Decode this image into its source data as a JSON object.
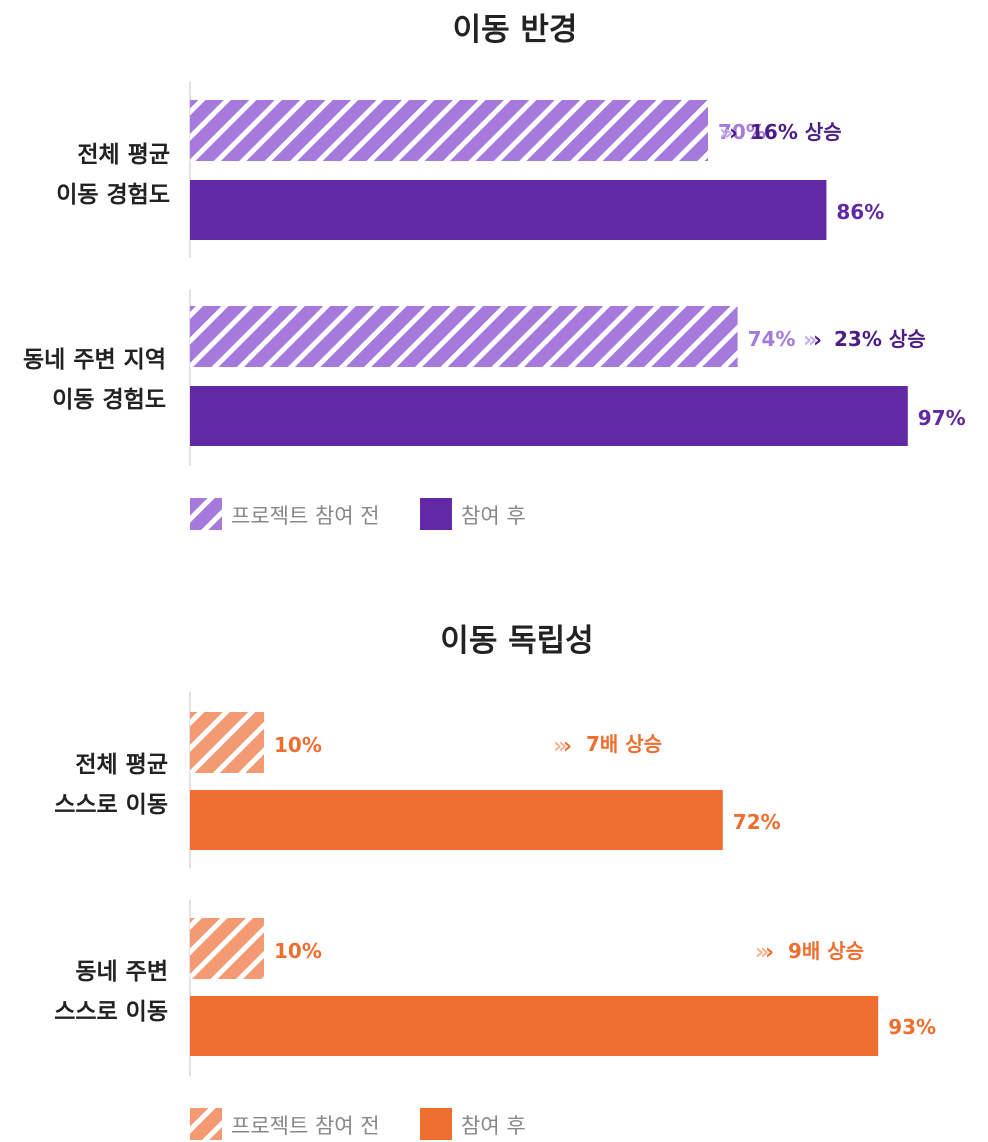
{
  "chart_data": [
    {
      "type": "bar",
      "orientation": "horizontal",
      "title": "이동 반경",
      "categories": [
        "전체 평균\n이동 경험도",
        "동네 주변 지역\n이동 경험도"
      ],
      "series": [
        {
          "name": "프로젝트 참여 전",
          "values": [
            70,
            74
          ],
          "labels": [
            "70%",
            "74%"
          ]
        },
        {
          "name": "참여 후",
          "values": [
            86,
            97
          ],
          "labels": [
            "86%",
            "97%"
          ]
        }
      ],
      "annotations": [
        "16% 상승",
        "23% 상승"
      ],
      "xlim": [
        0,
        100
      ],
      "legend_position": "bottom-left",
      "colors": {
        "before": "#a679dc",
        "after": "#6129a3",
        "before_label": "#a679dc",
        "after_label": "#6129a3",
        "gain": "#4b1d87",
        "arrow": "#c9aef0"
      }
    },
    {
      "type": "bar",
      "orientation": "horizontal",
      "title": "이동 독립성",
      "categories": [
        "전체 평균\n스스로 이동",
        "동네 주변\n스스로 이동"
      ],
      "series": [
        {
          "name": "프로젝트 참여 전",
          "values": [
            10,
            10
          ],
          "labels": [
            "10%",
            "10%"
          ]
        },
        {
          "name": "참여 후",
          "values": [
            72,
            93
          ],
          "labels": [
            "72%",
            "93%"
          ]
        }
      ],
      "annotations": [
        "7배 상승",
        "9배 상승"
      ],
      "xlim": [
        0,
        100
      ],
      "legend_position": "bottom-left",
      "colors": {
        "before": "#f39a72",
        "after": "#ee6e30",
        "before_label": "#ee6e30",
        "after_label": "#ee6e30",
        "gain": "#ee6e30",
        "arrow": "#f7b493"
      }
    }
  ]
}
